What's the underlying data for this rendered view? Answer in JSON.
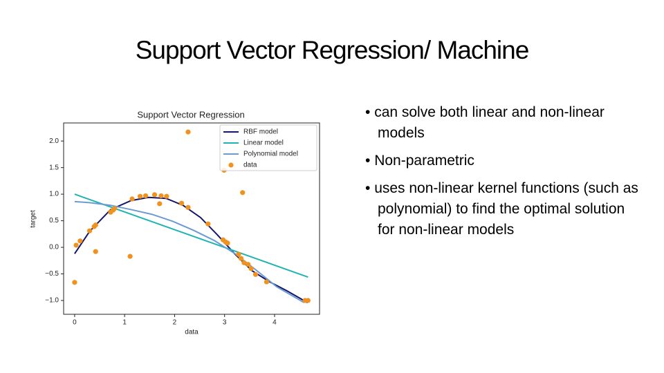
{
  "slide_title": "Support Vector Regression/ Machine",
  "bullets": [
    "can solve both linear and non-linear models",
    "Non-parametric",
    "uses non-linear kernel functions (such as polynomial) to find the optimal solution for non-linear models"
  ],
  "chart_data": {
    "type": "line",
    "title": "Support Vector Regression",
    "xlabel": "data",
    "ylabel": "target",
    "xlim": [
      -0.22,
      4.9
    ],
    "ylim": [
      -1.26,
      2.34
    ],
    "xticks": [
      0,
      1,
      2,
      3,
      4
    ],
    "yticks": [
      {
        "value": 2.0,
        "label": "2.0"
      },
      {
        "value": 1.5,
        "label": "1.5"
      },
      {
        "value": 1.0,
        "label": "1.0"
      },
      {
        "value": 0.5,
        "label": "0.5"
      },
      {
        "value": 0.0,
        "label": "0.0"
      },
      {
        "value": -0.5,
        "label": "−0.5"
      },
      {
        "value": -1.0,
        "label": "−1.0"
      }
    ],
    "legend": "upper right",
    "series": [
      {
        "name": "RBF model",
        "color": "#14146b",
        "mark": "line",
        "x": [
          0,
          0.3,
          0.72,
          1.13,
          1.48,
          1.83,
          2.17,
          2.52,
          2.86,
          3.21,
          3.55,
          3.9,
          4.25,
          4.66
        ],
        "values": [
          -0.12,
          0.3,
          0.71,
          0.88,
          0.94,
          0.92,
          0.79,
          0.56,
          0.23,
          -0.13,
          -0.44,
          -0.65,
          -0.82,
          -1.04
        ]
      },
      {
        "name": "Linear model",
        "color": "#1fb3b3",
        "mark": "line",
        "x": [
          0,
          4.67
        ],
        "values": [
          1.0,
          -0.56
        ]
      },
      {
        "name": "Polynomial model",
        "color": "#6b9bd2",
        "mark": "line",
        "x": [
          0,
          0.3,
          0.72,
          1.13,
          1.55,
          1.96,
          2.38,
          2.79,
          3.21,
          3.62,
          4.04,
          4.59
        ],
        "values": [
          0.86,
          0.84,
          0.79,
          0.71,
          0.62,
          0.49,
          0.32,
          0.13,
          -0.12,
          -0.42,
          -0.74,
          -1.04
        ]
      },
      {
        "name": "data",
        "color": "#f0921e",
        "mark": "scatter",
        "x": [
          0,
          0.03,
          0.11,
          0.3,
          0.39,
          0.42,
          0.42,
          0.72,
          0.77,
          0.8,
          1.11,
          1.15,
          1.31,
          1.42,
          1.6,
          1.7,
          1.73,
          1.84,
          2.14,
          2.27,
          2.27,
          2.67,
          2.97,
          2.99,
          3.02,
          3.06,
          3.36,
          3.28,
          3.33,
          3.39,
          3.47,
          3.53,
          3.62,
          3.84,
          4.61,
          4.67
        ],
        "values": [
          -0.66,
          0.04,
          0.12,
          0.31,
          0.39,
          0.42,
          -0.08,
          0.66,
          0.7,
          0.73,
          -0.17,
          0.91,
          0.96,
          0.97,
          0.99,
          0.82,
          0.97,
          0.96,
          0.83,
          0.75,
          2.17,
          0.44,
          0.14,
          1.45,
          0.1,
          0.08,
          1.03,
          -0.13,
          -0.21,
          -0.29,
          -0.32,
          -0.4,
          -0.51,
          -0.65,
          -1.0,
          -1.0
        ]
      }
    ]
  }
}
